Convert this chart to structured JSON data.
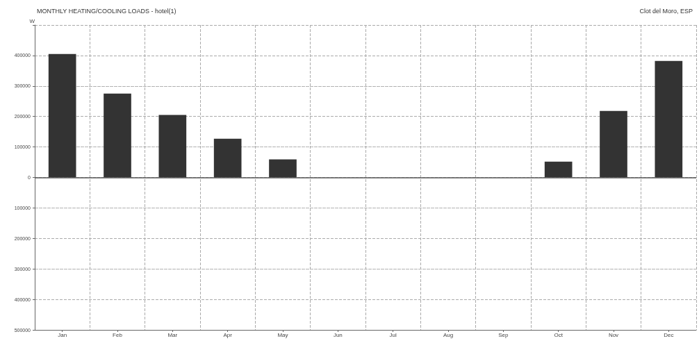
{
  "chart_data": {
    "type": "bar",
    "title": "MONTHLY HEATING/COOLING LOADS - hotel(1)",
    "subtitle": "Clot del Moro, ESP",
    "ylabel": "W",
    "categories": [
      "Jan",
      "Feb",
      "Mar",
      "Apr",
      "May",
      "Jun",
      "Jul",
      "Aug",
      "Sep",
      "Oct",
      "Nov",
      "Dec"
    ],
    "values": [
      405000,
      275000,
      205000,
      127000,
      59000,
      0,
      0,
      0,
      0,
      52000,
      218000,
      382000
    ],
    "color": "#333333",
    "ylim": [
      -500000,
      500000
    ],
    "yticks": [
      {
        "value": -500000,
        "label": "500000"
      },
      {
        "value": -400000,
        "label": "400000"
      },
      {
        "value": -300000,
        "label": "300000"
      },
      {
        "value": -200000,
        "label": "200000"
      },
      {
        "value": -100000,
        "label": "100000"
      },
      0,
      100000,
      200000,
      300000,
      400000,
      {
        "value": 500000,
        "label": null
      }
    ],
    "grid": true
  }
}
